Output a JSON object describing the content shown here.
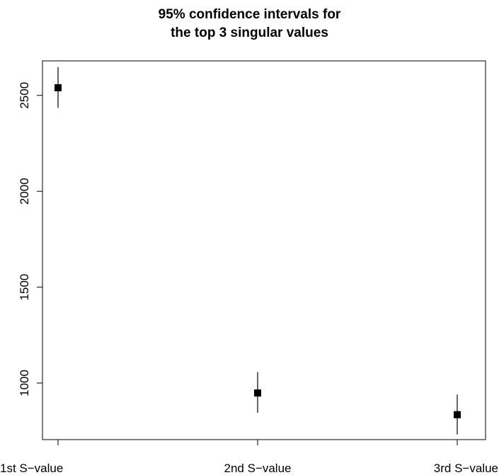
{
  "chart_data": {
    "type": "scatter",
    "title_lines": [
      "95% confidence intervals for",
      "the top 3 singular values"
    ],
    "categories": [
      "1st S−value",
      "2nd S−value",
      "3rd S−value"
    ],
    "estimates": [
      2540,
      948,
      835
    ],
    "lower": [
      2435,
      845,
      732
    ],
    "upper": [
      2648,
      1057,
      940
    ],
    "y_ticks": [
      "1000",
      "1500",
      "2000",
      "2500"
    ],
    "ylim": [
      705,
      2680
    ],
    "xlabel": "",
    "ylabel": "",
    "grid": false,
    "legend": "none"
  }
}
